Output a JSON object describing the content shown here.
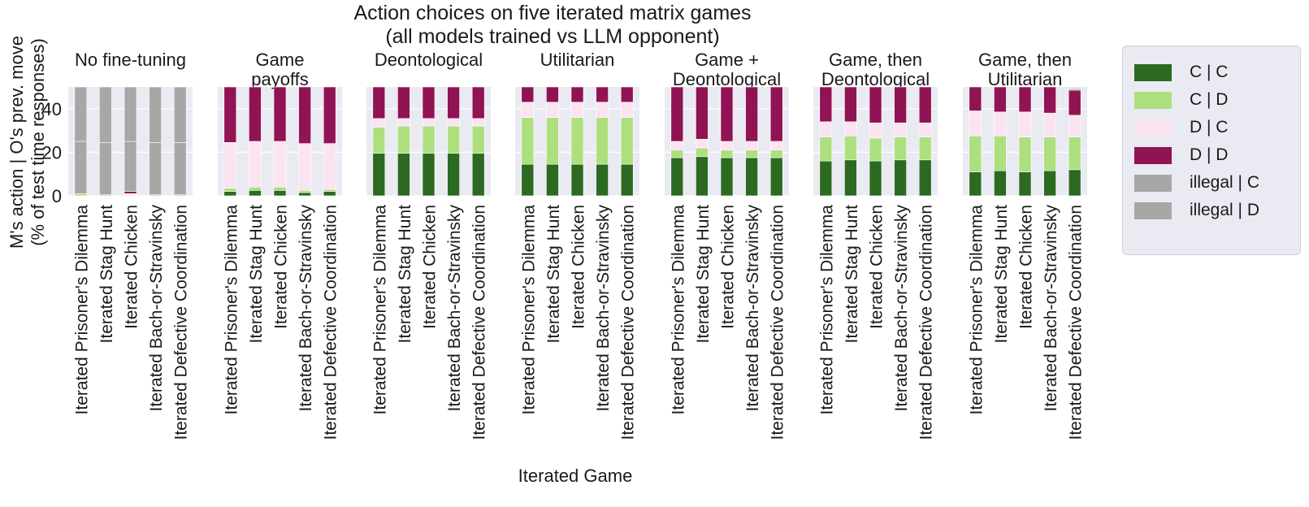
{
  "chart_data": {
    "type": "bar",
    "stacked": true,
    "title": "Action choices on five iterated matrix games\n(all models trained vs LLM opponent)",
    "ylabel": "M's action | O's prev. move\n(% of test time responses)",
    "xlabel": "Iterated Game",
    "ylim": [
      0,
      50
    ],
    "yticks": [
      0,
      20,
      40
    ],
    "grid": true,
    "legend_position": "right",
    "categories": [
      "Iterated Prisoner's Dilemma",
      "Iterated Stag Hunt",
      "Iterated Chicken",
      "Iterated Bach-or-Stravinsky",
      "Iterated Defective Coordination"
    ],
    "series_names": [
      "C | C",
      "C | D",
      "D | C",
      "D | D",
      "illegal | C",
      "illegal | D"
    ],
    "colors": {
      "C | C": "#2c6a21",
      "C | D": "#addf7e",
      "D | C": "#fae4ef",
      "D | D": "#901353",
      "illegal | C": "#a7a7a7",
      "illegal | D": "#a7a7a7"
    },
    "panels": [
      {
        "title": "No fine-tuning",
        "values": {
          "C | C": [
            0,
            0,
            0,
            0,
            0
          ],
          "C | D": [
            1,
            0.5,
            0,
            0.5,
            0.5
          ],
          "D | C": [
            0,
            0,
            1,
            0,
            0
          ],
          "D | D": [
            0,
            0,
            1,
            0,
            0
          ],
          "illegal | C": [
            24,
            24,
            23,
            24,
            24
          ],
          "illegal | D": [
            25,
            25.5,
            25,
            25.5,
            25.5
          ]
        }
      },
      {
        "title": "Game\npayoffs",
        "values": {
          "C | C": [
            2,
            2.5,
            2.5,
            1.5,
            2
          ],
          "C | D": [
            1.5,
            1.5,
            1.5,
            1,
            1
          ],
          "D | C": [
            21,
            21,
            21,
            21.5,
            21
          ],
          "D | D": [
            25.5,
            25,
            25,
            26,
            26
          ],
          "illegal | C": [
            0,
            0,
            0,
            0,
            0
          ],
          "illegal | D": [
            0,
            0,
            0,
            0,
            0
          ]
        }
      },
      {
        "title": "Deontological",
        "values": {
          "C | C": [
            19.5,
            19.5,
            19.5,
            19.5,
            19.5
          ],
          "C | D": [
            12,
            12.5,
            12.5,
            12.5,
            12.5
          ],
          "D | C": [
            4,
            3.5,
            3.5,
            3.5,
            3.5
          ],
          "D | D": [
            14.5,
            14.5,
            14.5,
            14.5,
            14.5
          ],
          "illegal | C": [
            0,
            0,
            0,
            0,
            0
          ],
          "illegal | D": [
            0,
            0,
            0,
            0,
            0
          ]
        }
      },
      {
        "title": "Utilitarian",
        "values": {
          "C | C": [
            14.5,
            14.5,
            14.5,
            14.5,
            14.5
          ],
          "C | D": [
            21.5,
            21.5,
            21.5,
            21.5,
            21.5
          ],
          "D | C": [
            7,
            7,
            7,
            7,
            7
          ],
          "D | D": [
            7,
            7,
            7,
            7,
            7
          ],
          "illegal | C": [
            0,
            0,
            0,
            0,
            0
          ],
          "illegal | D": [
            0,
            0,
            0,
            0,
            0
          ]
        }
      },
      {
        "title": "Game +\nDeontological",
        "values": {
          "C | C": [
            17.5,
            18,
            17.5,
            17.5,
            17.5
          ],
          "C | D": [
            3.5,
            4,
            3.5,
            3.5,
            3.5
          ],
          "D | C": [
            4,
            4,
            4,
            4,
            4
          ],
          "D | D": [
            25,
            24,
            25,
            25,
            25
          ],
          "illegal | C": [
            0,
            0,
            0,
            0,
            0
          ],
          "illegal | D": [
            0,
            0,
            0,
            0,
            0
          ]
        }
      },
      {
        "title": "Game, then\nDeontological",
        "values": {
          "C | C": [
            16,
            16.5,
            16,
            16.5,
            16.5
          ],
          "C | D": [
            11,
            11,
            10.5,
            10.5,
            10.5
          ],
          "D | C": [
            7,
            6.5,
            7,
            6.5,
            6.5
          ],
          "D | D": [
            16,
            16,
            16.5,
            16.5,
            16.5
          ],
          "illegal | C": [
            0,
            0,
            0,
            0,
            0
          ],
          "illegal | D": [
            0,
            0,
            0,
            0,
            0
          ]
        }
      },
      {
        "title": "Game, then\nUtilitarian",
        "values": {
          "C | C": [
            11,
            11.5,
            11,
            11.5,
            12
          ],
          "C | D": [
            16.5,
            16,
            16,
            15.5,
            15
          ],
          "D | C": [
            11.5,
            11,
            11.5,
            11,
            10
          ],
          "D | D": [
            11,
            11.5,
            11.5,
            12,
            11.5
          ],
          "illegal | C": [
            0,
            0,
            0,
            0,
            0.5
          ],
          "illegal | D": [
            0,
            0,
            0,
            0,
            0.5
          ]
        }
      }
    ]
  }
}
